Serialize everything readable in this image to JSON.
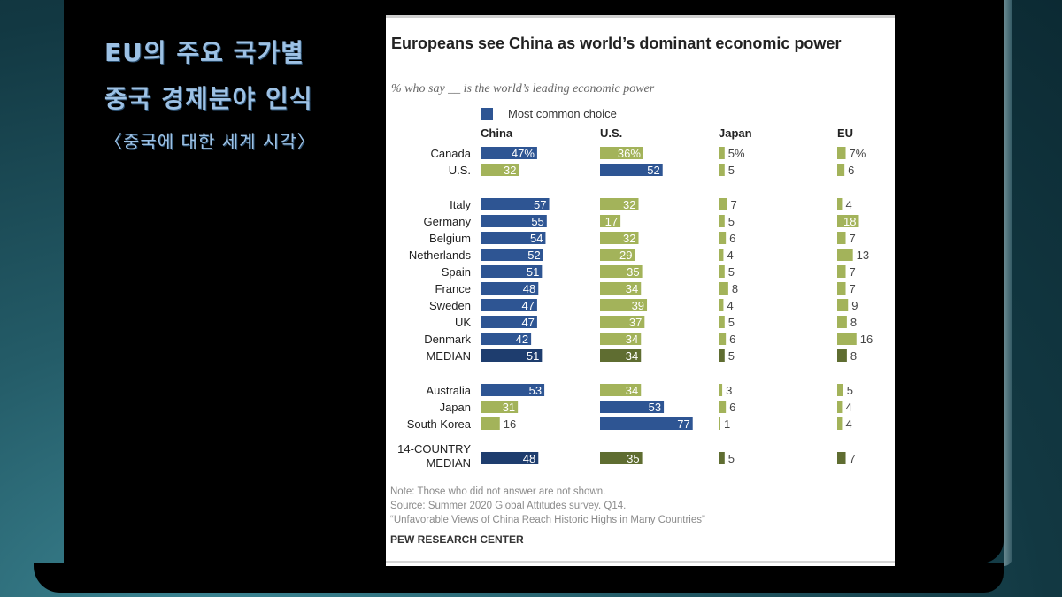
{
  "slide": {
    "korean_title_line1": "EU의 주요 국가별",
    "korean_title_line2": "중국 경제분야 인식",
    "korean_subtitle": "〈중국에 대한 세계 시각〉"
  },
  "colors": {
    "most_common": "#2e5593",
    "most_common_median": "#1e3d6e",
    "other": "#a3b35a",
    "other_median": "#5f6d31"
  },
  "chart_data": {
    "type": "bar",
    "title": "Europeans see China as world’s dominant economic power",
    "subtitle": "% who say __ is the world’s leading economic power",
    "legend": "Most common choice",
    "series_names": [
      "China",
      "U.S.",
      "Japan",
      "EU"
    ],
    "rows": [
      {
        "country": "Canada",
        "values": [
          47,
          36,
          5,
          7
        ],
        "labels": [
          "47%",
          "36%",
          "5%",
          "7%"
        ],
        "top": 0
      },
      {
        "country": "U.S.",
        "values": [
          32,
          52,
          5,
          6
        ],
        "top": 1
      },
      {
        "country": "Italy",
        "values": [
          57,
          32,
          7,
          4
        ],
        "top": 0
      },
      {
        "country": "Germany",
        "values": [
          55,
          17,
          5,
          18
        ],
        "top": 0
      },
      {
        "country": "Belgium",
        "values": [
          54,
          32,
          6,
          7
        ],
        "top": 0
      },
      {
        "country": "Netherlands",
        "values": [
          52,
          29,
          4,
          13
        ],
        "top": 0
      },
      {
        "country": "Spain",
        "values": [
          51,
          35,
          5,
          7
        ],
        "top": 0
      },
      {
        "country": "France",
        "values": [
          48,
          34,
          8,
          7
        ],
        "top": 0
      },
      {
        "country": "Sweden",
        "values": [
          47,
          39,
          4,
          9
        ],
        "top": 0
      },
      {
        "country": "UK",
        "values": [
          47,
          37,
          5,
          8
        ],
        "top": 0
      },
      {
        "country": "Denmark",
        "values": [
          42,
          34,
          6,
          16
        ],
        "top": 0
      },
      {
        "country": "MEDIAN",
        "values": [
          51,
          34,
          5,
          8
        ],
        "top": 0,
        "median": true
      },
      {
        "country": "Australia",
        "values": [
          53,
          34,
          3,
          5
        ],
        "top": 0
      },
      {
        "country": "Japan",
        "values": [
          31,
          53,
          6,
          4
        ],
        "top": 1
      },
      {
        "country": "South Korea",
        "values": [
          16,
          77,
          1,
          4
        ],
        "top": 1
      },
      {
        "country": "14-COUNTRY MEDIAN",
        "country_lines": [
          "14-COUNTRY",
          "MEDIAN"
        ],
        "values": [
          48,
          35,
          5,
          7
        ],
        "top": 0,
        "median": true
      }
    ],
    "note": "Note: Those who did not answer are not shown.",
    "source": "Source: Summer 2020 Global Attitudes survey. Q14.",
    "report": "“Unfavorable Views of China Reach Historic Highs in Many Countries”",
    "org": "PEW RESEARCH CENTER"
  }
}
